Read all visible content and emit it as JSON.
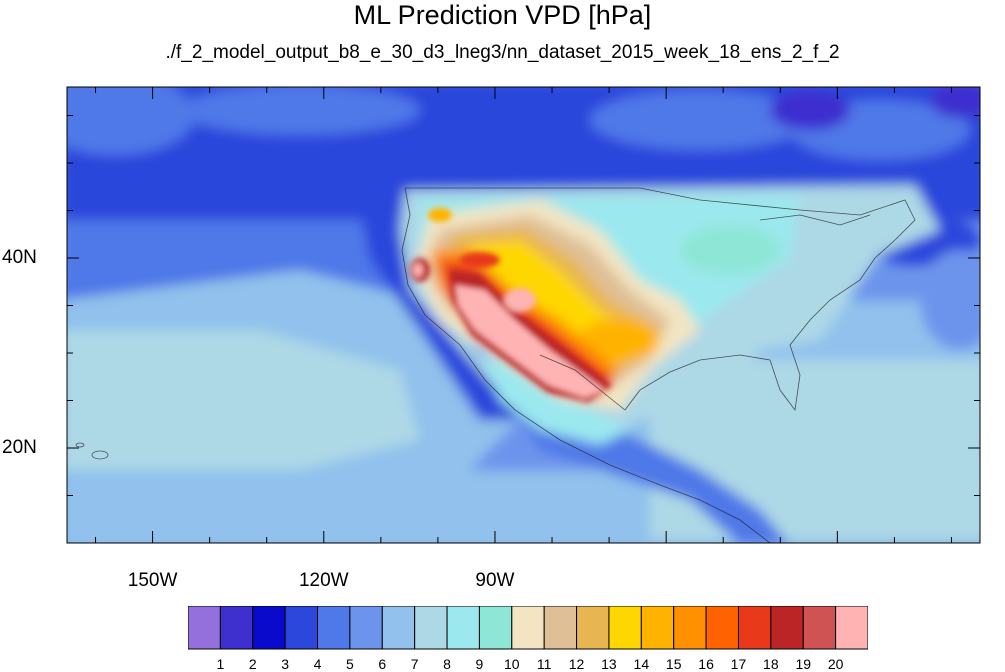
{
  "title": "ML Prediction VPD [hPa]",
  "subtitle": "./f_2_model_output_b8_e_30_d3_lneg3/nn_dataset_2015_week_18_ens_2_f_2",
  "map": {
    "lon_range": [
      -165,
      -5
    ],
    "lat_range": [
      10,
      58
    ],
    "lon_ticks": [
      {
        "value": -150,
        "label": "150W"
      },
      {
        "value": -120,
        "label": "120W"
      },
      {
        "value": -90,
        "label": "90W"
      }
    ],
    "lat_ticks": [
      {
        "value": 40,
        "label": "40N"
      },
      {
        "value": 20,
        "label": "20N"
      }
    ]
  },
  "colorbar": {
    "colors": [
      "#9370db",
      "#3e2fcf",
      "#0a0acd",
      "#2c47db",
      "#4f78e8",
      "#6d94ec",
      "#91c1ec",
      "#add8e6",
      "#9be8ee",
      "#8ee6d6",
      "#f3e5c3",
      "#dfc096",
      "#e8b650",
      "#ffd700",
      "#ffb300",
      "#ff9000",
      "#ff6200",
      "#e8391b",
      "#bb2525",
      "#cf5353",
      "#ffb3b3"
    ],
    "labels": [
      "1",
      "2",
      "3",
      "4",
      "5",
      "6",
      "7",
      "8",
      "9",
      "10",
      "11",
      "12",
      "13",
      "14",
      "15",
      "16",
      "17",
      "18",
      "19",
      "20"
    ]
  }
}
